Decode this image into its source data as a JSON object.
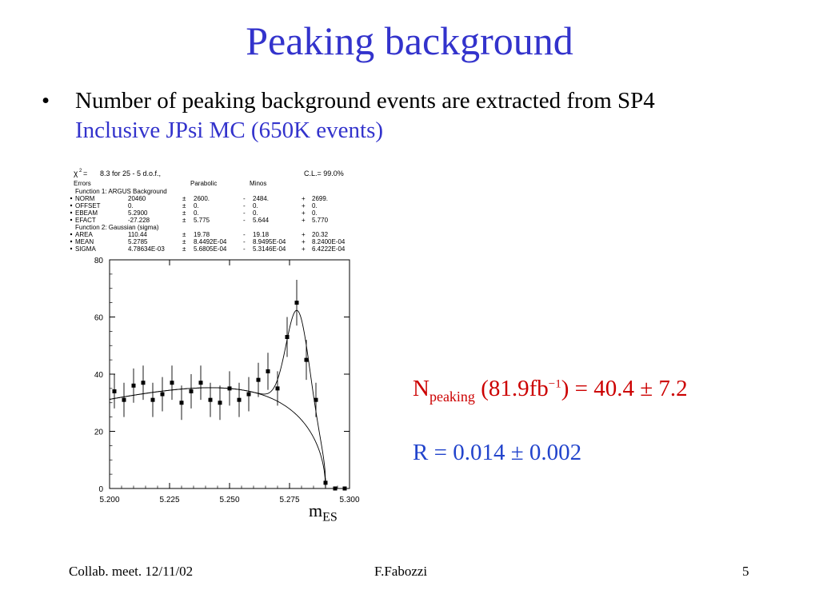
{
  "slide": {
    "title": "Peaking background",
    "bullet": "•",
    "bullet_line1": "Number of peaking background events are extracted from SP4",
    "bullet_line2": "Inclusive JPsi MC (650K events)",
    "result1": {
      "N": "N",
      "sub": "peaking",
      "lumi": "(81.9fb",
      "sup": "−1",
      "rest": ") = 40.4 ± 7.2"
    },
    "result2": "R = 0.014 ± 0.002",
    "footer_left": "Collab. meet. 12/11/02",
    "footer_center": "F.Fabozzi",
    "footer_right": "5"
  },
  "fit_box": {
    "chi2_label": "χ",
    "chi2_sup": "2",
    "chi2_eq": "=",
    "chi2_value": "8.3 for  25 -  5 d.o.f.,",
    "cl": "C.L.= 99.0%",
    "errors": "Errors",
    "parabolic": "Parabolic",
    "minos": "Minos",
    "function1": "Function  1: ARGUS Background",
    "function2": "Function  2: Gaussian (sigma)",
    "rows1": [
      {
        "name": "NORM",
        "val": "20460",
        "pm": "±",
        "par": "2600.",
        "m1": "-",
        "min": "2484.",
        "p1": "+",
        "max": "2699."
      },
      {
        "name": "OFFSET",
        "val": "0.",
        "pm": "±",
        "par": "0.",
        "m1": "-",
        "min": "0.",
        "p1": "+",
        "max": "0."
      },
      {
        "name": "EBEAM",
        "val": "5.2900",
        "pm": "±",
        "par": "0.",
        "m1": "-",
        "min": "0.",
        "p1": "+",
        "max": "0."
      },
      {
        "name": "EFACT",
        "val": "-27.228",
        "pm": "±",
        "par": "5.775",
        "m1": "-",
        "min": "5.644",
        "p1": "+",
        "max": "5.770"
      }
    ],
    "rows2": [
      {
        "name": "AREA",
        "val": "110.44",
        "pm": "±",
        "par": "19.78",
        "m1": "-",
        "min": "19.18",
        "p1": "+",
        "max": "20.32"
      },
      {
        "name": "MEAN",
        "val": "5.2785",
        "pm": "±",
        "par": "8.4492E-04",
        "m1": "-",
        "min": "8.9495E-04",
        "p1": "+",
        "max": "8.2400E-04"
      },
      {
        "name": "SIGMA",
        "val": "4.78634E-03",
        "pm": "±",
        "par": "5.6805E-04",
        "m1": "-",
        "min": "5.3146E-04",
        "p1": "+",
        "max": "6.4222E-04"
      }
    ]
  },
  "chart_data": {
    "type": "scatter",
    "title": "",
    "xlabel_main": "m",
    "xlabel_sub": "ES",
    "xlim": [
      5.2,
      5.3
    ],
    "ylim": [
      0,
      80
    ],
    "x_ticks": [
      "5.200",
      "5.225",
      "5.250",
      "5.275",
      "5.300"
    ],
    "y_ticks": [
      "0",
      "20",
      "40",
      "60",
      "80"
    ],
    "points": [
      {
        "x": 5.202,
        "y": 34,
        "err": 6
      },
      {
        "x": 5.206,
        "y": 31,
        "err": 6
      },
      {
        "x": 5.21,
        "y": 36,
        "err": 6
      },
      {
        "x": 5.214,
        "y": 37,
        "err": 6
      },
      {
        "x": 5.218,
        "y": 31,
        "err": 6
      },
      {
        "x": 5.222,
        "y": 33,
        "err": 6
      },
      {
        "x": 5.226,
        "y": 37,
        "err": 6
      },
      {
        "x": 5.23,
        "y": 30,
        "err": 6
      },
      {
        "x": 5.234,
        "y": 34,
        "err": 6
      },
      {
        "x": 5.238,
        "y": 37,
        "err": 6
      },
      {
        "x": 5.242,
        "y": 31,
        "err": 6
      },
      {
        "x": 5.246,
        "y": 30,
        "err": 6
      },
      {
        "x": 5.25,
        "y": 35,
        "err": 6
      },
      {
        "x": 5.254,
        "y": 31,
        "err": 6
      },
      {
        "x": 5.258,
        "y": 33,
        "err": 6
      },
      {
        "x": 5.262,
        "y": 38,
        "err": 6
      },
      {
        "x": 5.266,
        "y": 41,
        "err": 6.5
      },
      {
        "x": 5.27,
        "y": 35,
        "err": 6
      },
      {
        "x": 5.274,
        "y": 53,
        "err": 7
      },
      {
        "x": 5.278,
        "y": 65,
        "err": 8
      },
      {
        "x": 5.282,
        "y": 45,
        "err": 7
      },
      {
        "x": 5.286,
        "y": 31,
        "err": 6
      },
      {
        "x": 5.29,
        "y": 2,
        "err": 1.5
      },
      {
        "x": 5.294,
        "y": 0,
        "err": 0.5
      },
      {
        "x": 5.298,
        "y": 0,
        "err": 0.5
      }
    ],
    "fit_params": {
      "norm": 20460,
      "ebeam": 5.29,
      "efact": -27.228,
      "area": 110.44,
      "mean": 5.2785,
      "sigma": 0.00478634,
      "binwidth": 0.004
    }
  }
}
